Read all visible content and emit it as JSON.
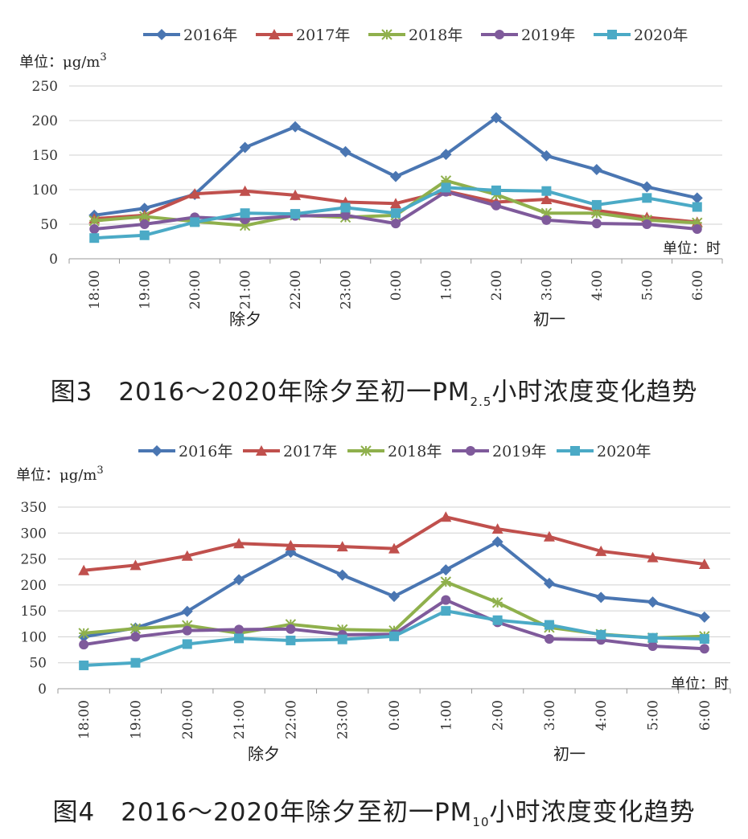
{
  "chart_data": [
    {
      "type": "line",
      "caption_prefix": "图3　2016～2020年除夕至初一PM",
      "caption_sub": "2.5",
      "caption_suffix": "小时浓度变化趋势",
      "y_unit_label": "单位：μg/m",
      "y_unit_sup": "3",
      "x_unit_label": "单位：时",
      "group_labels": [
        "除夕",
        "初一"
      ],
      "categories": [
        "18:00",
        "19:00",
        "20:00",
        "21:00",
        "22:00",
        "23:00",
        "0:00",
        "1:00",
        "2:00",
        "3:00",
        "4:00",
        "5:00",
        "6:00"
      ],
      "yticks": [
        0,
        50,
        100,
        150,
        200,
        250
      ],
      "ylim": [
        0,
        250
      ],
      "grid": true,
      "legend_position": "top",
      "series": [
        {
          "name": "2016年",
          "color": "#4a76b2",
          "marker": "diamond",
          "values": [
            63,
            73,
            93,
            161,
            191,
            155,
            119,
            151,
            204,
            149,
            129,
            104,
            88
          ]
        },
        {
          "name": "2017年",
          "color": "#c0504d",
          "marker": "triangle",
          "values": [
            58,
            63,
            94,
            98,
            92,
            82,
            80,
            98,
            82,
            86,
            70,
            60,
            53
          ]
        },
        {
          "name": "2018年",
          "color": "#8fb04c",
          "marker": "star",
          "values": [
            55,
            61,
            54,
            48,
            63,
            60,
            63,
            113,
            93,
            66,
            66,
            56,
            52
          ]
        },
        {
          "name": "2019年",
          "color": "#7f5a9b",
          "marker": "circle",
          "values": [
            43,
            50,
            60,
            57,
            62,
            63,
            51,
            97,
            77,
            56,
            51,
            50,
            43
          ]
        },
        {
          "name": "2020年",
          "color": "#4baac6",
          "marker": "square",
          "values": [
            30,
            34,
            53,
            66,
            65,
            74,
            66,
            103,
            99,
            98,
            78,
            88,
            75
          ]
        }
      ]
    },
    {
      "type": "line",
      "caption_prefix": "图4　2016～2020年除夕至初一PM",
      "caption_sub": "10",
      "caption_suffix": "小时浓度变化趋势",
      "y_unit_label": "单位：μg/m",
      "y_unit_sup": "3",
      "x_unit_label": "单位：时",
      "group_labels": [
        "除夕",
        "初一"
      ],
      "categories": [
        "18:00",
        "19:00",
        "20:00",
        "21:00",
        "22:00",
        "23:00",
        "0:00",
        "1:00",
        "2:00",
        "3:00",
        "4:00",
        "5:00",
        "6:00"
      ],
      "yticks": [
        0,
        50,
        100,
        150,
        200,
        250,
        300,
        350
      ],
      "ylim": [
        0,
        350
      ],
      "grid": true,
      "legend_position": "top",
      "series": [
        {
          "name": "2016年",
          "color": "#4a76b2",
          "marker": "diamond",
          "values": [
            100,
            117,
            149,
            210,
            263,
            219,
            178,
            229,
            283,
            203,
            176,
            167,
            138
          ]
        },
        {
          "name": "2017年",
          "color": "#c0504d",
          "marker": "triangle",
          "values": [
            228,
            238,
            256,
            280,
            276,
            274,
            270,
            331,
            308,
            293,
            265,
            253,
            240
          ]
        },
        {
          "name": "2018年",
          "color": "#8fb04c",
          "marker": "star",
          "values": [
            107,
            116,
            122,
            107,
            124,
            114,
            112,
            206,
            166,
            118,
            105,
            98,
            101
          ]
        },
        {
          "name": "2019年",
          "color": "#7f5a9b",
          "marker": "circle",
          "values": [
            85,
            100,
            112,
            114,
            115,
            104,
            105,
            171,
            128,
            96,
            94,
            82,
            77
          ]
        },
        {
          "name": "2020年",
          "color": "#4baac6",
          "marker": "square",
          "values": [
            45,
            50,
            86,
            97,
            93,
            95,
            101,
            150,
            132,
            123,
            104,
            98,
            96
          ]
        }
      ]
    }
  ]
}
